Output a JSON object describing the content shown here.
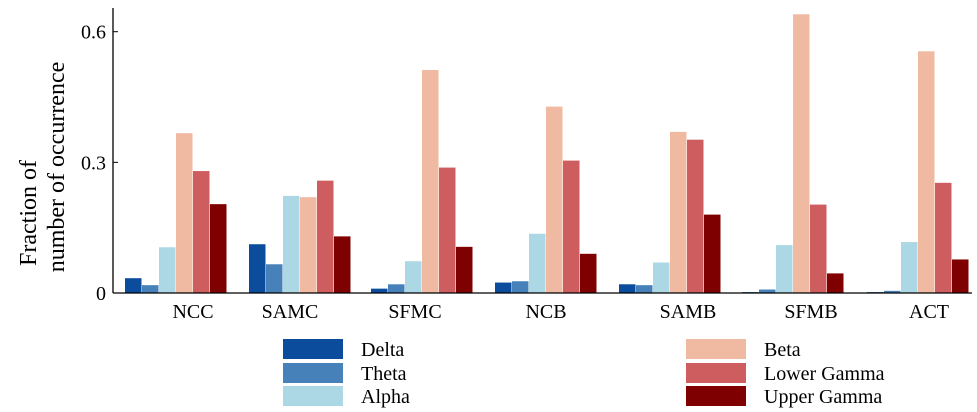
{
  "chart_data": {
    "type": "bar",
    "title": "",
    "xlabel": "",
    "ylabel_lines": [
      "Fraction of",
      "number of occurrence"
    ],
    "ylim": [
      0,
      0.65
    ],
    "yticks": [
      {
        "value": 0,
        "label": "0"
      },
      {
        "value": 0.3,
        "label": "0.3"
      },
      {
        "value": 0.6,
        "label": "0.6"
      }
    ],
    "grid": false,
    "legend": "bottom",
    "categories": [
      "NCC",
      "SAMC",
      "SFMC",
      "NCB",
      "SAMB",
      "SFMB",
      "ACT"
    ],
    "series": [
      {
        "name": "Delta",
        "color": "#0b4d9c",
        "values": [
          0.034,
          0.112,
          0.01,
          0.024,
          0.02,
          0.002,
          0.002
        ]
      },
      {
        "name": "Theta",
        "color": "#4682b9",
        "values": [
          0.018,
          0.066,
          0.02,
          0.027,
          0.018,
          0.008,
          0.005
        ]
      },
      {
        "name": "Alpha",
        "color": "#acd8e5",
        "values": [
          0.105,
          0.223,
          0.073,
          0.136,
          0.07,
          0.11,
          0.117
        ]
      },
      {
        "name": "Beta",
        "color": "#f0b9a2",
        "values": [
          0.367,
          0.22,
          0.512,
          0.428,
          0.37,
          0.64,
          0.555
        ]
      },
      {
        "name": "Lower Gamma",
        "color": "#cd5d5e",
        "values": [
          0.28,
          0.258,
          0.288,
          0.304,
          0.352,
          0.203,
          0.253
        ]
      },
      {
        "name": "Upper Gamma",
        "color": "#7f0000",
        "values": [
          0.204,
          0.13,
          0.106,
          0.09,
          0.18,
          0.045,
          0.077
        ]
      }
    ]
  }
}
